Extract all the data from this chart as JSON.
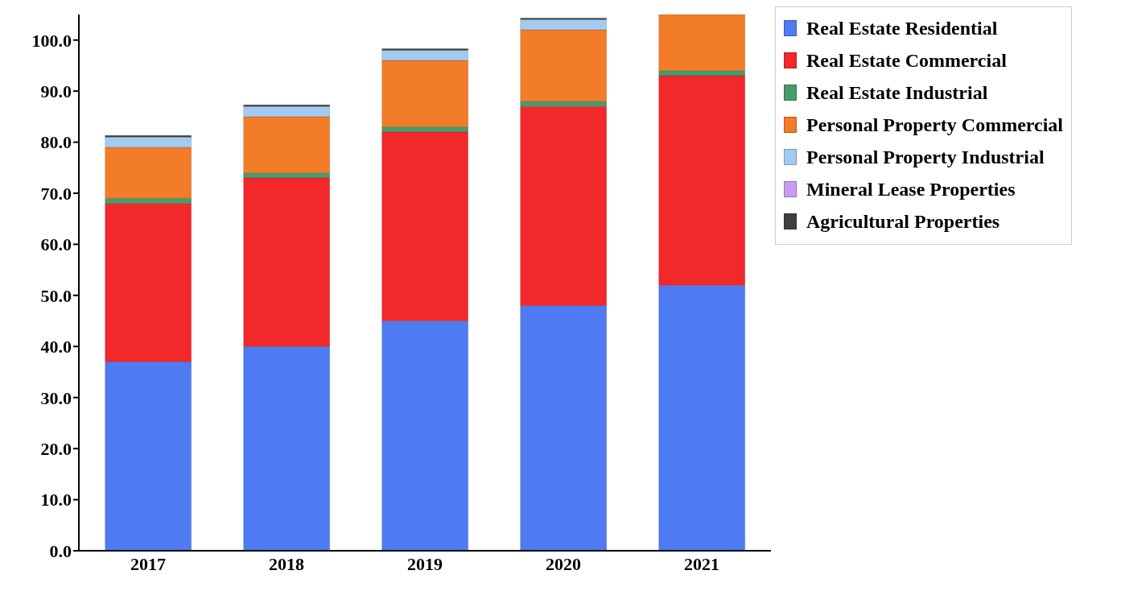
{
  "chart_data": {
    "type": "bar",
    "stacked": true,
    "categories": [
      "2017",
      "2018",
      "2019",
      "2020",
      "2021"
    ],
    "series": [
      {
        "name": "Real Estate Residential",
        "color": "#4f7bf2",
        "values": [
          37,
          40,
          45,
          48,
          52
        ]
      },
      {
        "name": "Real Estate Commercial",
        "color": "#f2282a",
        "values": [
          31,
          33,
          37,
          39,
          41
        ]
      },
      {
        "name": "Real Estate Industrial",
        "color": "#4a9a6a",
        "values": [
          1,
          1,
          1,
          1,
          1
        ]
      },
      {
        "name": "Personal Property Commercial",
        "color": "#f27c28",
        "values": [
          10,
          11,
          13,
          14,
          11
        ]
      },
      {
        "name": "Personal Property Industrial",
        "color": "#a3cbf2",
        "values": [
          2,
          2,
          2,
          2,
          null
        ]
      },
      {
        "name": "Mineral Lease Properties",
        "color": "#c89bf5",
        "values": [
          0,
          0,
          0,
          0,
          null
        ]
      },
      {
        "name": "Agricultural Properties",
        "color": "#404040",
        "values": [
          0.3,
          0.3,
          0.3,
          0.3,
          null
        ]
      }
    ],
    "ylim": [
      0,
      105
    ],
    "yticks": [
      {
        "value": 0,
        "label": "0.0"
      },
      {
        "value": 10,
        "label": "10.0"
      },
      {
        "value": 20,
        "label": "20.0"
      },
      {
        "value": 30,
        "label": "30.0"
      },
      {
        "value": 40,
        "label": "40.0"
      },
      {
        "value": 50,
        "label": "50.0"
      },
      {
        "value": 60,
        "label": "60.0"
      },
      {
        "value": 70,
        "label": "70.0"
      },
      {
        "value": 80,
        "label": "80.0"
      },
      {
        "value": 90,
        "label": "90.0"
      },
      {
        "value": 100,
        "label": "100.0"
      }
    ],
    "grid": false,
    "legend": "top right"
  }
}
